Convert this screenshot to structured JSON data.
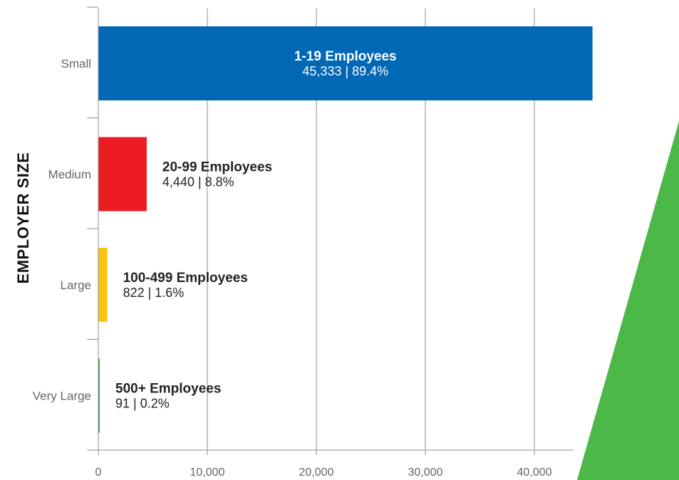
{
  "chart_data": {
    "type": "bar",
    "orientation": "horizontal",
    "ylabel": "EMPLOYER SIZE",
    "xlabel": "",
    "xlim": [
      0,
      43000
    ],
    "xticks": [
      0,
      10000,
      20000,
      30000,
      40000
    ],
    "xtick_labels": [
      "0",
      "10,000",
      "20,000",
      "30,000",
      "40,000"
    ],
    "grid": true,
    "categories": [
      "Small",
      "Medium",
      "Large",
      "Very Large"
    ],
    "values": [
      45333,
      4440,
      822,
      91
    ],
    "bar_titles": [
      "1-19 Employees",
      "20-99 Employees",
      "100-499 Employees",
      "500+ Employees"
    ],
    "bar_value_labels": [
      "45,333 | 89.4%",
      "4,440 | 8.8%",
      "822 | 1.6%",
      "91 | 0.2%"
    ],
    "colors": [
      "#0068b5",
      "#ed1c24",
      "#ffc20e",
      "#3fae49"
    ],
    "label_colors": {
      "inside": "#ffffff",
      "outside": "#222222"
    },
    "decoration": {
      "wedge_color": "#4cb848"
    }
  }
}
